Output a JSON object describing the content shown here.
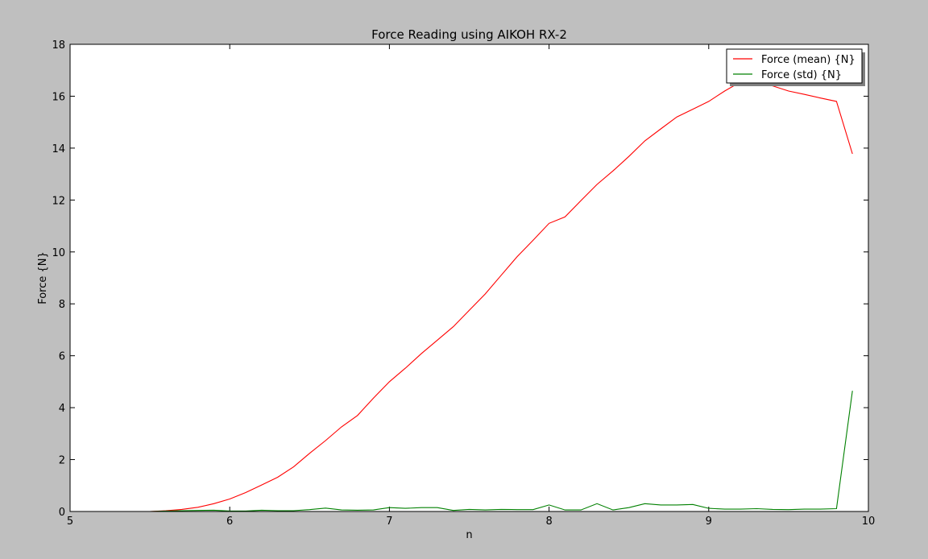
{
  "chart_data": {
    "type": "line",
    "title": "Force Reading using AIKOH RX-2",
    "xlabel": "n",
    "ylabel": "Force {N}",
    "xlim": [
      5,
      10
    ],
    "ylim": [
      0,
      18
    ],
    "xticks": [
      5,
      6,
      7,
      8,
      9,
      10
    ],
    "yticks": [
      0,
      2,
      4,
      6,
      8,
      10,
      12,
      14,
      16,
      18
    ],
    "grid": false,
    "legend_position": "top-right",
    "x": [
      5.0,
      5.1,
      5.2,
      5.3,
      5.4,
      5.5,
      5.6,
      5.7,
      5.8,
      5.9,
      6.0,
      6.1,
      6.2,
      6.3,
      6.4,
      6.5,
      6.6,
      6.7,
      6.8,
      6.9,
      7.0,
      7.1,
      7.2,
      7.3,
      7.4,
      7.5,
      7.6,
      7.7,
      7.8,
      7.9,
      8.0,
      8.1,
      8.2,
      8.3,
      8.4,
      8.5,
      8.6,
      8.7,
      8.8,
      8.9,
      9.0,
      9.1,
      9.2,
      9.3,
      9.4,
      9.5,
      9.6,
      9.7,
      9.8,
      9.9
    ],
    "series": [
      {
        "name": "Force (mean) {N}",
        "color": "#ff0000",
        "values": [
          0,
          0,
          0,
          0,
          0,
          0,
          0.03,
          0.08,
          0.16,
          0.3,
          0.48,
          0.73,
          1.02,
          1.32,
          1.72,
          2.24,
          2.73,
          3.26,
          3.7,
          4.37,
          5.0,
          5.52,
          6.08,
          6.6,
          7.12,
          7.75,
          8.38,
          9.1,
          9.82,
          10.45,
          11.1,
          11.35,
          11.98,
          12.6,
          13.12,
          13.68,
          14.28,
          14.74,
          15.2,
          15.5,
          15.8,
          16.2,
          16.55,
          16.55,
          16.4,
          16.2,
          16.07,
          15.93,
          15.8,
          13.78
        ]
      },
      {
        "name": "Force (std) {N}",
        "color": "#008000",
        "values": [
          0,
          0,
          0,
          0,
          0,
          0,
          0.02,
          0.03,
          0.04,
          0.05,
          0.02,
          0.02,
          0.05,
          0.03,
          0.03,
          0.07,
          0.13,
          0.06,
          0.05,
          0.06,
          0.15,
          0.12,
          0.15,
          0.15,
          0.04,
          0.08,
          0.06,
          0.08,
          0.07,
          0.07,
          0.25,
          0.06,
          0.06,
          0.3,
          0.06,
          0.15,
          0.3,
          0.25,
          0.25,
          0.27,
          0.12,
          0.09,
          0.09,
          0.11,
          0.08,
          0.07,
          0.09,
          0.09,
          0.11,
          4.65
        ]
      }
    ]
  }
}
